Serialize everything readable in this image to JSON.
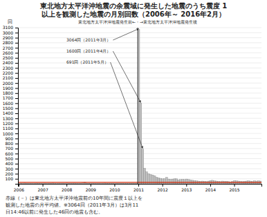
{
  "chart_data": {
    "type": "bar",
    "title": "東北地方太平洋沖地震の余震域に発生した地震のうち震度 1\n以上を観測した地震の月別回数（2006年～ 2016年2月）",
    "subtitle": "東北地方太平洋沖地震発生前←・→東北地方太平洋沖地震発生後",
    "y_label": "回",
    "categories": [
      "2006",
      null,
      null,
      null,
      null,
      null,
      null,
      null,
      null,
      null,
      null,
      null,
      "2007",
      null,
      null,
      null,
      null,
      null,
      null,
      null,
      null,
      null,
      null,
      null,
      "2008",
      null,
      null,
      null,
      null,
      null,
      null,
      null,
      null,
      null,
      null,
      null,
      "2009",
      null,
      null,
      null,
      null,
      null,
      null,
      null,
      null,
      null,
      null,
      null,
      "2010",
      null,
      null,
      null,
      null,
      null,
      null,
      null,
      null,
      null,
      null,
      null,
      "2011",
      null,
      null,
      null,
      null,
      null,
      null,
      null,
      null,
      null,
      null,
      null,
      "2012",
      null,
      null,
      null,
      null,
      null,
      null,
      null,
      null,
      null,
      null,
      null,
      "2013",
      null,
      null,
      null,
      null,
      null,
      null,
      null,
      null,
      null,
      null,
      null,
      "2014",
      null,
      null,
      null,
      null,
      null,
      null,
      null,
      null,
      null,
      null,
      null,
      "2015",
      null,
      null,
      null,
      null,
      null,
      null,
      null,
      null,
      null,
      null,
      null,
      null,
      null
    ],
    "values": [
      10,
      12,
      8,
      14,
      10,
      9,
      11,
      8,
      10,
      13,
      12,
      10,
      11,
      13,
      9,
      11,
      12,
      14,
      10,
      8,
      11,
      10,
      12,
      9,
      14,
      12,
      10,
      11,
      13,
      10,
      9,
      11,
      15,
      30,
      10,
      11,
      10,
      12,
      11,
      10,
      11,
      9,
      10,
      14,
      12,
      11,
      10,
      12,
      10,
      11,
      10,
      12,
      11,
      10,
      11,
      10,
      12,
      11,
      10,
      9,
      3064,
      1600,
      691,
      310,
      240,
      200,
      185,
      175,
      160,
      130,
      120,
      110,
      100,
      105,
      130,
      95,
      90,
      95,
      100,
      100,
      80,
      85,
      90,
      85,
      95,
      85,
      75,
      70,
      65,
      60,
      55,
      50,
      55,
      50,
      45,
      55,
      65,
      70,
      60,
      55,
      50,
      45,
      55,
      50,
      50,
      45,
      40,
      50,
      65,
      60,
      55,
      50,
      45,
      50,
      55,
      60,
      55,
      50,
      60,
      55,
      60,
      55
    ],
    "color": "#c0c0c0",
    "ylim": [
      0,
      3100
    ],
    "yticks": [
      100,
      200,
      300,
      400,
      500,
      600,
      700,
      800,
      900,
      1000,
      1100,
      1200,
      1300,
      1400,
      1500,
      1600,
      1700,
      1800,
      1900,
      2000,
      2100,
      2200,
      2300,
      2400,
      2500,
      2600,
      2700,
      2800,
      2900,
      3000,
      3100
    ],
    "grid": true,
    "reference_line": {
      "value": 30,
      "color": "#cc2200"
    },
    "divider_index": 60,
    "annotations": [
      {
        "text": "3064回（2011年3月）",
        "index": 60
      },
      {
        "text": "1600回（2011年4月）",
        "index": 61
      },
      {
        "text": "691回（2011年5月）",
        "index": 62
      }
    ],
    "footer": [
      "赤線（－）は東北地方太平洋沖地震前の10年間に震度１以上を",
      "観測した地震の月平均値。※3064回（2011年3月）は3月11",
      "日14:46以前に発生した46回の地震も含む。"
    ]
  }
}
